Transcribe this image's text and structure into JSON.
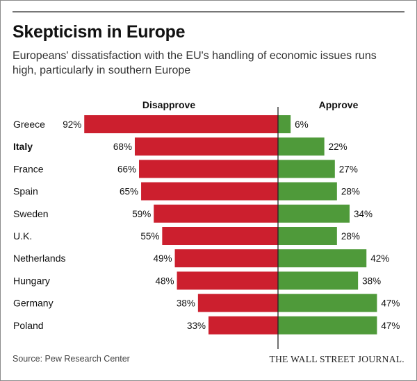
{
  "header": {
    "title": "Skepticism in Europe",
    "subtitle": "Europeans' dissatisfaction with the EU's handling of economic issues runs high, particularly in southern Europe"
  },
  "footer": {
    "source": "Source: Pew Research Center",
    "brand": "THE WALL STREET JOURNAL."
  },
  "colors": {
    "disapprove": "#cc1f2e",
    "approve": "#4f9a3a",
    "axis": "#222222"
  },
  "chart_data": {
    "type": "bar",
    "orientation": "horizontal-diverging",
    "title": "Skepticism in Europe",
    "subtitle": "Europeans' dissatisfaction with the EU's handling of economic issues runs high, particularly in southern Europe",
    "categories": [
      "Greece",
      "Italy",
      "France",
      "Spain",
      "Sweden",
      "U.K.",
      "Netherlands",
      "Hungary",
      "Germany",
      "Poland"
    ],
    "highlighted_category": "Italy",
    "series": [
      {
        "name": "Disapprove",
        "side": "left",
        "values": [
          92,
          68,
          66,
          65,
          59,
          55,
          49,
          48,
          38,
          33
        ]
      },
      {
        "name": "Approve",
        "side": "right",
        "values": [
          6,
          22,
          27,
          28,
          34,
          28,
          42,
          38,
          47,
          47
        ]
      }
    ],
    "value_suffix": "%",
    "xlim": [
      0,
      100
    ],
    "grid": false,
    "source": "Source: Pew Research Center"
  }
}
